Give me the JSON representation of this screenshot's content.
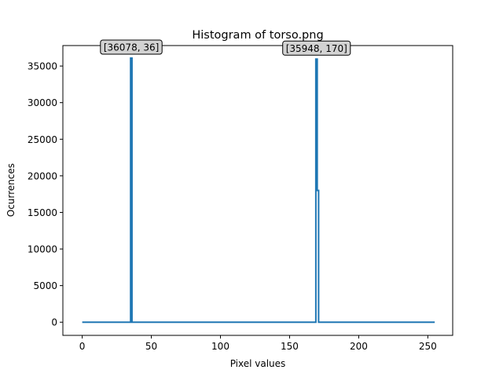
{
  "chart_data": {
    "type": "line",
    "title": "Histogram of torso.png",
    "xlabel": "Pixel values",
    "ylabel": "Ocurrences",
    "xlim": [
      -14,
      268
    ],
    "ylim": [
      -1800,
      37800
    ],
    "xticks": [
      0,
      50,
      100,
      150,
      200,
      250
    ],
    "yticks": [
      0,
      5000,
      10000,
      15000,
      20000,
      25000,
      30000,
      35000
    ],
    "grid": false,
    "legend": "none",
    "series": [
      {
        "color": "#1f77b4",
        "points": [
          [
            0,
            0
          ],
          [
            35,
            0
          ],
          [
            35,
            36078
          ],
          [
            36,
            36078
          ],
          [
            36,
            0
          ],
          [
            169,
            0
          ],
          [
            169,
            35948
          ],
          [
            170,
            35948
          ],
          [
            170,
            18000
          ],
          [
            171,
            18000
          ],
          [
            171,
            0
          ],
          [
            255,
            0
          ]
        ]
      }
    ],
    "annotations": [
      {
        "text": "[36078, 36]",
        "x": 35.5,
        "y": 36078
      },
      {
        "text": "[35948, 170]",
        "x": 169.5,
        "y": 35948
      }
    ]
  }
}
